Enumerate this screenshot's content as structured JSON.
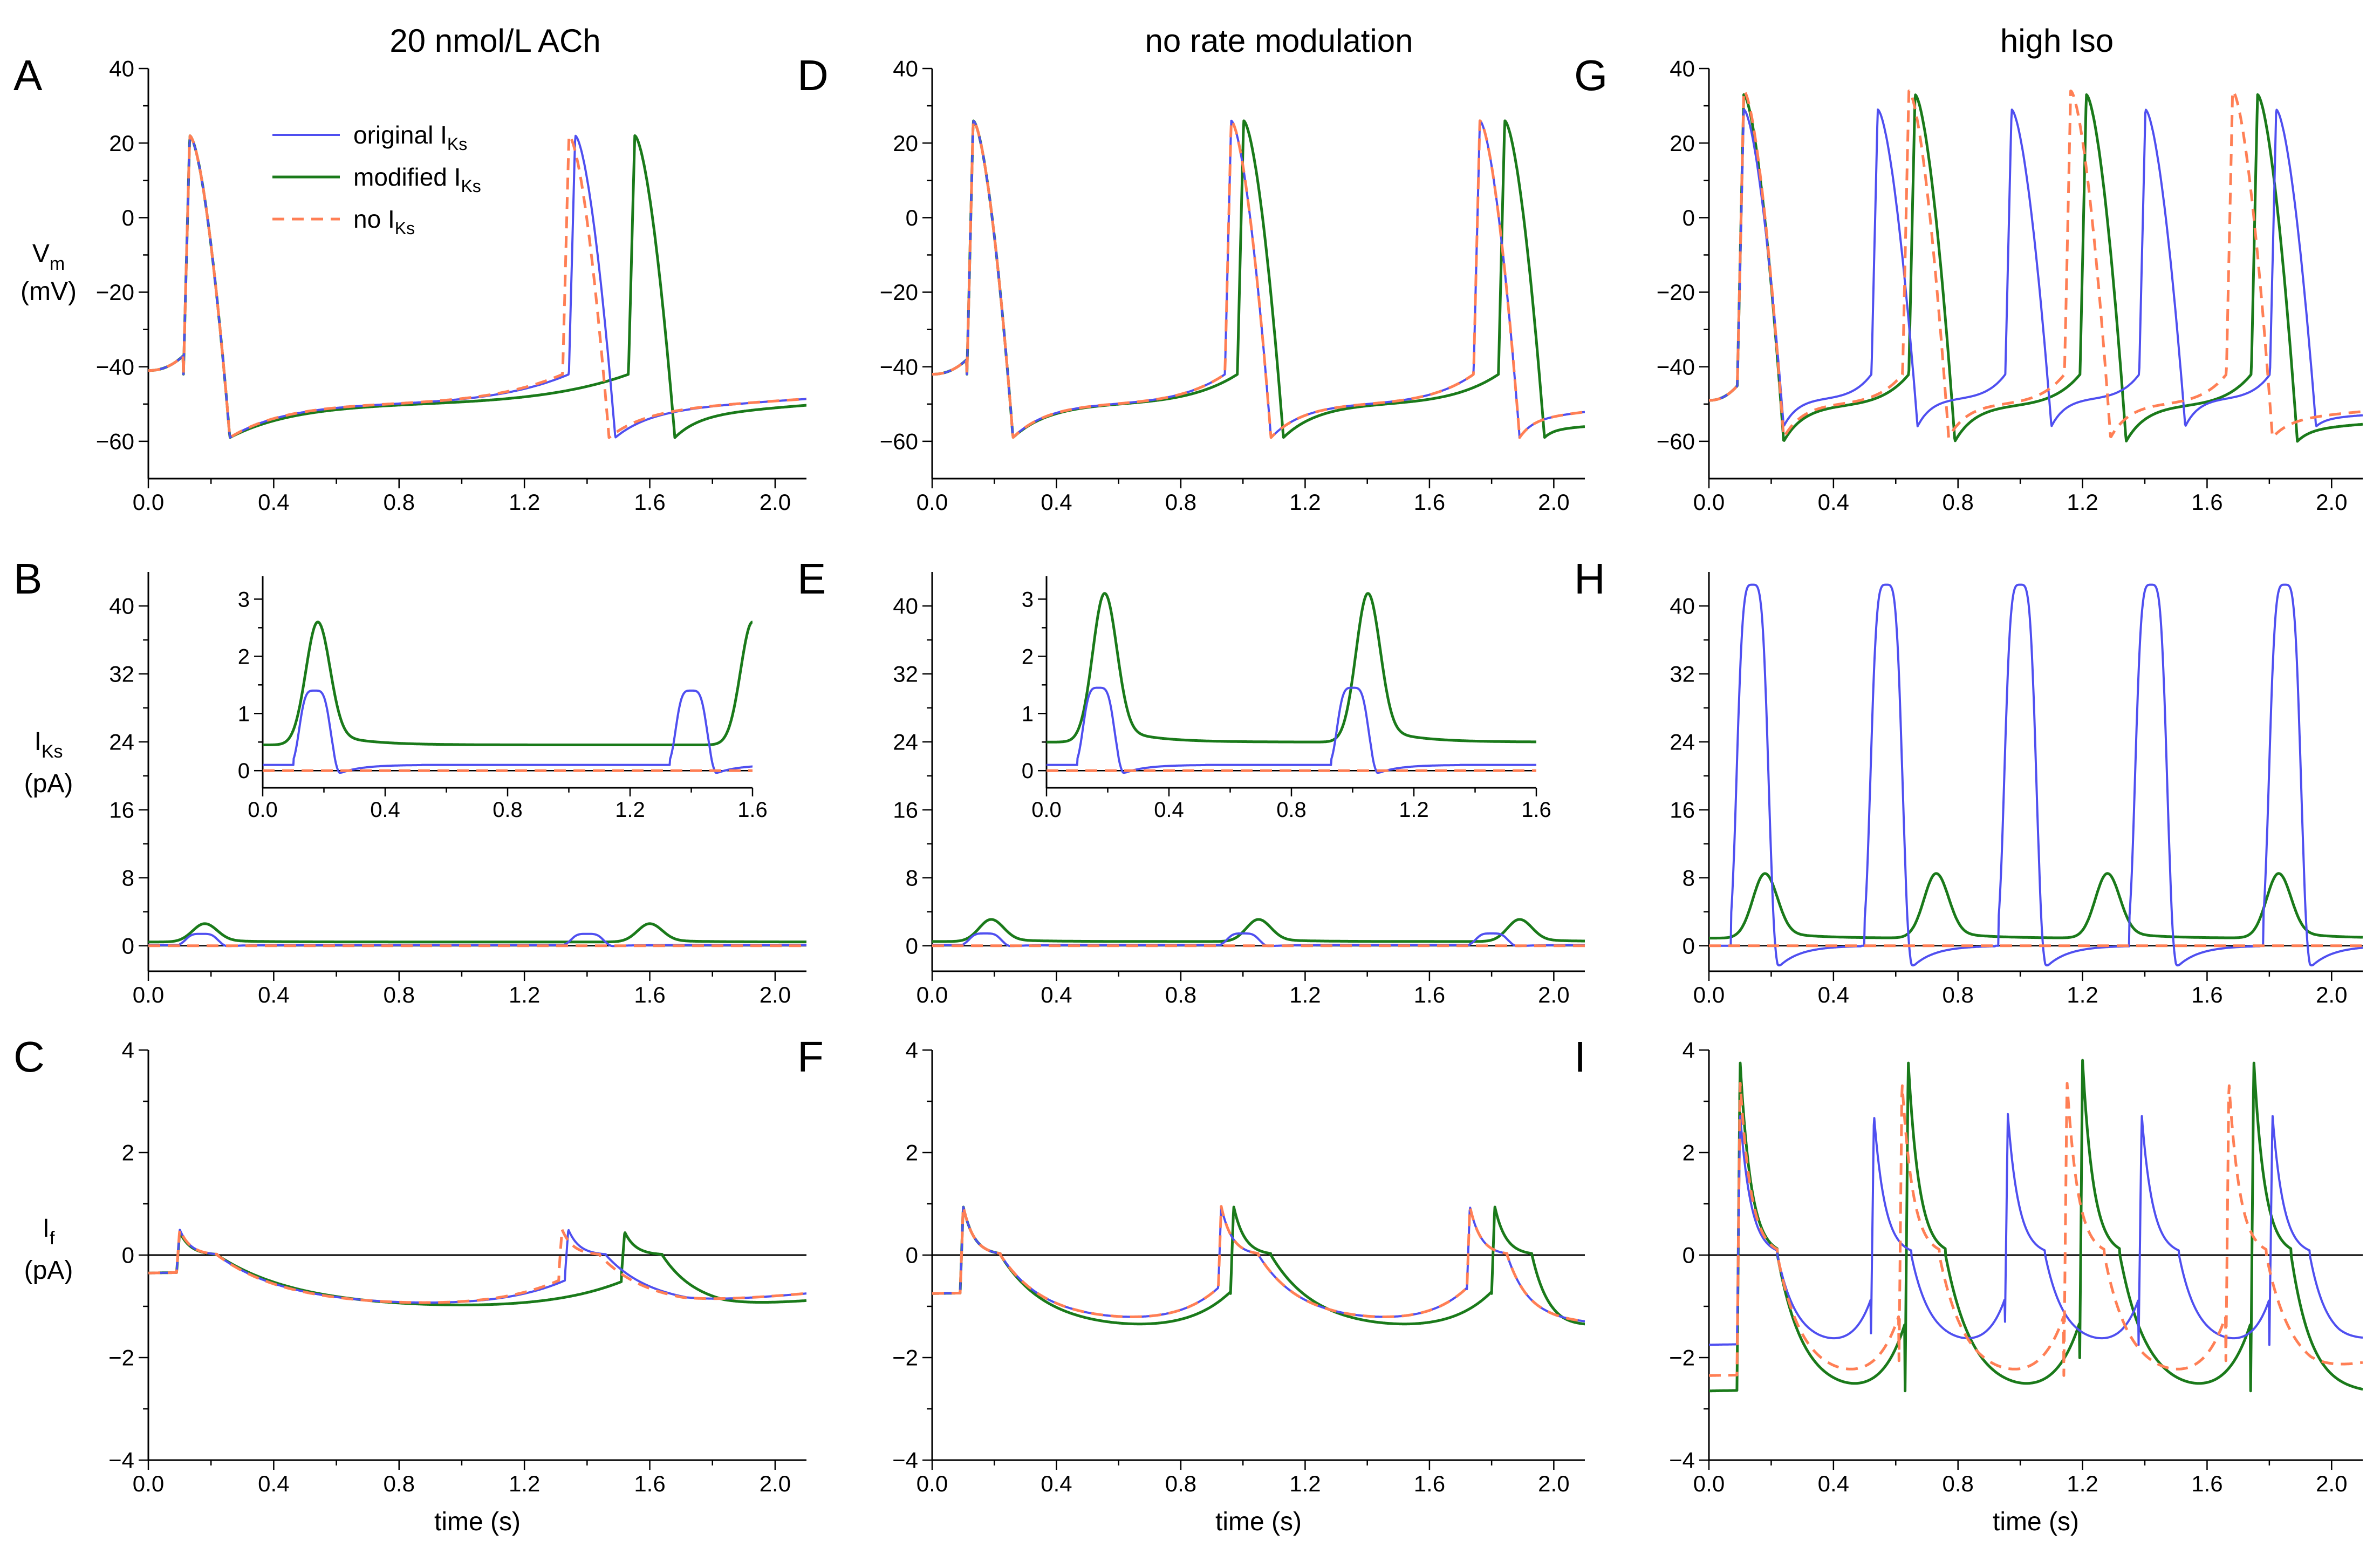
{
  "column_titles": [
    "20 nmol/L ACh",
    "no rate modulation",
    "high Iso"
  ],
  "row_labels": [
    {
      "main": "V",
      "sub": "m",
      "unit": "(mV)"
    },
    {
      "main": "I",
      "sub": "Ks",
      "unit": "(pA)"
    },
    {
      "main": "I",
      "sub": "f",
      "unit": "(pA)"
    }
  ],
  "x_axis_title": "time (s)",
  "colors": {
    "original": "#4f4ff0",
    "modified": "#1a7a1a",
    "none": "#ff7f55",
    "zero": "#000000"
  },
  "legend": [
    {
      "name": "original",
      "pre": "original I",
      "sub": "Ks",
      "style": "solid",
      "color_key": "original"
    },
    {
      "name": "modified",
      "pre": "modified I",
      "sub": "Ks",
      "style": "solid",
      "color_key": "modified"
    },
    {
      "name": "none",
      "pre": "no I",
      "sub": "Ks",
      "style": "dashed",
      "color_key": "none"
    }
  ],
  "chart_data": [
    {
      "id": "A",
      "type": "line",
      "condition": "ach",
      "kind": "vm",
      "xlim": [
        0,
        2.1
      ],
      "ylim": [
        -70,
        40
      ],
      "xticks": [
        0.0,
        0.4,
        0.8,
        1.2,
        1.6,
        2.0
      ],
      "yticks": [
        -60,
        -40,
        -20,
        0,
        20,
        40
      ],
      "xticklabels": [
        "0.0",
        "0.4",
        "0.8",
        "1.2",
        "1.6",
        "2.0"
      ],
      "yticklabels": [
        "−60",
        "−40",
        "−20",
        "0",
        "20",
        "40"
      ],
      "series": [
        {
          "name": "original",
          "upstrokes": [
            0.12,
            1.35
          ],
          "vmin": -59,
          "vpeak": 22,
          "start": -41,
          "end": -46
        },
        {
          "name": "modified",
          "upstrokes": [
            0.12,
            1.54
          ],
          "vmin": -59,
          "vpeak": 22,
          "start": -41,
          "end": -48
        },
        {
          "name": "none",
          "upstrokes": [
            0.12,
            1.33
          ],
          "vmin": -59,
          "vpeak": 22,
          "start": -41,
          "end": -46
        }
      ]
    },
    {
      "id": "B",
      "type": "line",
      "condition": "ach",
      "kind": "iks",
      "xlim": [
        0,
        2.1
      ],
      "ylim": [
        -3,
        44
      ],
      "xticks": [
        0.0,
        0.4,
        0.8,
        1.2,
        1.6,
        2.0
      ],
      "yticks": [
        0,
        8,
        16,
        24,
        32,
        40
      ],
      "xticklabels": [
        "0.0",
        "0.4",
        "0.8",
        "1.2",
        "1.6",
        "2.0"
      ],
      "yticklabels": [
        "0",
        "8",
        "16",
        "24",
        "32",
        "40"
      ],
      "series": [
        {
          "name": "original",
          "peak_times": [
            0.17,
            1.4
          ],
          "peak": 1.4,
          "baseline": 0.1,
          "dip": -0.2
        },
        {
          "name": "modified",
          "peak_times": [
            0.18,
            1.6
          ],
          "peak": 2.6,
          "baseline": 0.45
        },
        {
          "name": "none",
          "value": 0
        }
      ],
      "inset": {
        "xlim": [
          0,
          1.6
        ],
        "ylim": [
          -0.3,
          3.4
        ],
        "xticks": [
          0.0,
          0.4,
          0.8,
          1.2,
          1.6
        ],
        "yticks": [
          0,
          1,
          2,
          3
        ],
        "xticklabels": [
          "0.0",
          "0.4",
          "0.8",
          "1.2",
          "1.6"
        ],
        "yticklabels": [
          "0",
          "1",
          "2",
          "3"
        ]
      }
    },
    {
      "id": "C",
      "type": "line",
      "condition": "ach",
      "kind": "if",
      "xlim": [
        0,
        2.1
      ],
      "ylim": [
        -4,
        4
      ],
      "xticks": [
        0.0,
        0.4,
        0.8,
        1.2,
        1.6,
        2.0
      ],
      "yticks": [
        -4,
        -2,
        0,
        2,
        4
      ],
      "xticklabels": [
        "0.0",
        "0.4",
        "0.8",
        "1.2",
        "1.6",
        "2.0"
      ],
      "yticklabels": [
        "−4",
        "−2",
        "0",
        "2",
        "4"
      ],
      "series": [
        {
          "name": "original",
          "spike_times": [
            0.1,
            1.34
          ],
          "peak": 0.5,
          "trough": -1.0,
          "start": -0.35,
          "end": -0.7
        },
        {
          "name": "modified",
          "spike_times": [
            0.1,
            1.52
          ],
          "peak": 0.45,
          "trough": -1.05,
          "start": -0.35,
          "end": -0.85
        },
        {
          "name": "none",
          "spike_times": [
            0.1,
            1.32
          ],
          "peak": 0.5,
          "trough": -1.0,
          "start": -0.35,
          "end": -0.7
        }
      ]
    },
    {
      "id": "D",
      "type": "line",
      "condition": "norate",
      "kind": "vm",
      "xlim": [
        0,
        2.1
      ],
      "ylim": [
        -70,
        40
      ],
      "xticks": [
        0.0,
        0.4,
        0.8,
        1.2,
        1.6,
        2.0
      ],
      "yticks": [
        -60,
        -40,
        -20,
        0,
        20,
        40
      ],
      "xticklabels": [
        "0.0",
        "0.4",
        "0.8",
        "1.2",
        "1.6",
        "2.0"
      ],
      "yticklabels": [
        "−60",
        "−40",
        "−20",
        "0",
        "20",
        "40"
      ],
      "series": [
        {
          "name": "original",
          "upstrokes": [
            0.12,
            0.95,
            1.75
          ],
          "vmin": -59,
          "vpeak": 26,
          "start": -42,
          "end": -50
        },
        {
          "name": "modified",
          "upstrokes": [
            0.12,
            0.99,
            1.83
          ],
          "vmin": -59,
          "vpeak": 26,
          "start": -42,
          "end": -55
        },
        {
          "name": "none",
          "upstrokes": [
            0.12,
            0.95,
            1.75
          ],
          "vmin": -59,
          "vpeak": 26,
          "start": -42,
          "end": -50
        }
      ]
    },
    {
      "id": "E",
      "type": "line",
      "condition": "norate",
      "kind": "iks",
      "xlim": [
        0,
        2.1
      ],
      "ylim": [
        -3,
        44
      ],
      "xticks": [
        0.0,
        0.4,
        0.8,
        1.2,
        1.6,
        2.0
      ],
      "yticks": [
        0,
        8,
        16,
        24,
        32,
        40
      ],
      "xticklabels": [
        "0.0",
        "0.4",
        "0.8",
        "1.2",
        "1.6",
        "2.0"
      ],
      "yticklabels": [
        "0",
        "8",
        "16",
        "24",
        "32",
        "40"
      ],
      "series": [
        {
          "name": "original",
          "peak_times": [
            0.17,
            1.0,
            1.8
          ],
          "peak": 1.45,
          "baseline": 0.1,
          "dip": -0.2
        },
        {
          "name": "modified",
          "peak_times": [
            0.19,
            1.05,
            1.89
          ],
          "peak": 3.1,
          "baseline": 0.5
        },
        {
          "name": "none",
          "value": 0
        }
      ],
      "inset": {
        "xlim": [
          0,
          1.6
        ],
        "ylim": [
          -0.3,
          3.4
        ],
        "xticks": [
          0.0,
          0.4,
          0.8,
          1.2,
          1.6
        ],
        "yticks": [
          0,
          1,
          2,
          3
        ],
        "xticklabels": [
          "0.0",
          "0.4",
          "0.8",
          "1.2",
          "1.6"
        ],
        "yticklabels": [
          "0",
          "1",
          "2",
          "3"
        ]
      }
    },
    {
      "id": "F",
      "type": "line",
      "condition": "norate",
      "kind": "if",
      "xlim": [
        0,
        2.1
      ],
      "ylim": [
        -4,
        4
      ],
      "xticks": [
        0.0,
        0.4,
        0.8,
        1.2,
        1.6,
        2.0
      ],
      "yticks": [
        -4,
        -2,
        0,
        2,
        4
      ],
      "xticklabels": [
        "0.0",
        "0.4",
        "0.8",
        "1.2",
        "1.6",
        "2.0"
      ],
      "yticklabels": [
        "−4",
        "−2",
        "0",
        "2",
        "4"
      ],
      "series": [
        {
          "name": "original",
          "spike_times": [
            0.1,
            0.93,
            1.73
          ],
          "peak": 0.95,
          "trough": -1.3,
          "start": -0.75,
          "end": -1.35
        },
        {
          "name": "modified",
          "spike_times": [
            0.1,
            0.97,
            1.81
          ],
          "peak": 0.95,
          "trough": -1.45,
          "start": -0.75,
          "end": -1.35
        },
        {
          "name": "none",
          "spike_times": [
            0.1,
            0.93,
            1.73
          ],
          "peak": 0.95,
          "trough": -1.3,
          "start": -0.75,
          "end": -1.35
        }
      ]
    },
    {
      "id": "G",
      "type": "line",
      "condition": "iso",
      "kind": "vm",
      "xlim": [
        0,
        2.1
      ],
      "ylim": [
        -70,
        40
      ],
      "xticks": [
        0.0,
        0.4,
        0.8,
        1.2,
        1.6,
        2.0
      ],
      "yticks": [
        -60,
        -40,
        -20,
        0,
        20,
        40
      ],
      "xticklabels": [
        "0.0",
        "0.4",
        "0.8",
        "1.2",
        "1.6",
        "2.0"
      ],
      "yticklabels": [
        "−60",
        "−40",
        "−20",
        "0",
        "20",
        "40"
      ],
      "series": [
        {
          "name": "original",
          "upstrokes": [
            0.1,
            0.53,
            0.96,
            1.39,
            1.81
          ],
          "vmin": -56,
          "vpeak": 29,
          "start": -49,
          "end": -52
        },
        {
          "name": "modified",
          "upstrokes": [
            0.1,
            0.65,
            1.2,
            1.75
          ],
          "vmin": -60,
          "vpeak": 33,
          "start": -49,
          "end": -54
        },
        {
          "name": "none",
          "upstrokes": [
            0.1,
            0.63,
            1.15,
            1.67
          ],
          "vmin": -59,
          "vpeak": 34,
          "start": -49,
          "end": -50
        }
      ]
    },
    {
      "id": "H",
      "type": "line",
      "condition": "iso",
      "kind": "iks",
      "xlim": [
        0,
        2.1
      ],
      "ylim": [
        -3,
        44
      ],
      "xticks": [
        0.0,
        0.4,
        0.8,
        1.2,
        1.6,
        2.0
      ],
      "yticks": [
        0,
        8,
        16,
        24,
        32,
        40
      ],
      "xticklabels": [
        "0.0",
        "0.4",
        "0.8",
        "1.2",
        "1.6",
        "2.0"
      ],
      "yticklabels": [
        "0",
        "8",
        "16",
        "24",
        "32",
        "40"
      ],
      "series": [
        {
          "name": "original",
          "peak_times": [
            0.14,
            0.57,
            1.0,
            1.42,
            1.85
          ],
          "peak": 42.5,
          "baseline": 0.0,
          "dip": -3.5
        },
        {
          "name": "modified",
          "peak_times": [
            0.18,
            0.73,
            1.28,
            1.83
          ],
          "peak": 8.5,
          "baseline": 0.9
        },
        {
          "name": "none",
          "value": 0
        }
      ]
    },
    {
      "id": "I",
      "type": "line",
      "condition": "iso",
      "kind": "if",
      "xlim": [
        0,
        2.1
      ],
      "ylim": [
        -4,
        4
      ],
      "xticks": [
        0.0,
        0.4,
        0.8,
        1.2,
        1.6,
        2.0
      ],
      "yticks": [
        -4,
        -2,
        0,
        2,
        4
      ],
      "xticklabels": [
        "0.0",
        "0.4",
        "0.8",
        "1.2",
        "1.6",
        "2.0"
      ],
      "yticklabels": [
        "−4",
        "−2",
        "0",
        "2",
        "4"
      ],
      "series": [
        {
          "name": "original",
          "spike_times": [
            0.1,
            0.53,
            0.96,
            1.39,
            1.81
          ],
          "peak": 2.75,
          "trough": -1.75,
          "start": -1.75,
          "end": -1.6
        },
        {
          "name": "modified",
          "spike_times": [
            0.1,
            0.64,
            1.2,
            1.75
          ],
          "peak": 3.8,
          "trough": -2.7,
          "start": -2.65,
          "end": -2.7
        },
        {
          "name": "none",
          "spike_times": [
            0.1,
            0.62,
            1.15,
            1.67
          ],
          "peak": 3.4,
          "trough": -2.4,
          "start": -2.35,
          "end": -2.0
        }
      ]
    }
  ]
}
